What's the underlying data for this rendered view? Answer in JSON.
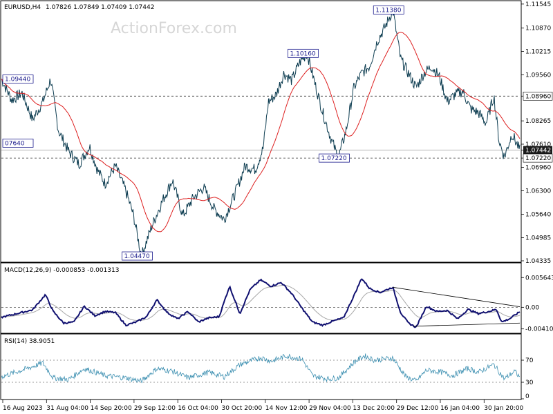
{
  "watermark": "ActionForex.com",
  "header": {
    "symbol": "EURUSD,H4",
    "ohlc": "1.07826 1.07849 1.07409 1.07442"
  },
  "colors": {
    "price": "#0c3c50",
    "ma": "#dd2020",
    "macd": "#101070",
    "signal": "#a8a8a8",
    "rsi": "#3a8eb0",
    "grid": "#606060",
    "current_tag_bg": "#1c1c1c"
  },
  "chart_data": [
    {
      "type": "line",
      "panel": "price",
      "title": "",
      "ylim": [
        1.04335,
        1.1162
      ],
      "y_ticks": [
        "1.11545",
        "1.10870",
        "1.10215",
        "1.09560",
        "1.08960",
        "1.08265",
        "1.07610",
        "1.07442",
        "1.07220",
        "1.06960",
        "1.06300",
        "1.05640",
        "1.04985",
        "1.04335"
      ],
      "x_ticks": [
        "16 Aug 2023",
        "31 Aug 04:00",
        "14 Sep 20:00",
        "29 Sep 12:00",
        "16 Oct 04:00",
        "30 Oct 20:00",
        "14 Nov 12:00",
        "29 Nov 04:00",
        "13 Dec 20:00",
        "29 Dec 12:00",
        "16 Jan 04:00",
        "30 Jan 20:00"
      ],
      "series_keypoints": [
        [
          0,
          1.0944
        ],
        [
          0.02,
          1.0885
        ],
        [
          0.04,
          1.0905
        ],
        [
          0.06,
          1.083
        ],
        [
          0.08,
          1.088
        ],
        [
          0.095,
          1.0944
        ],
        [
          0.11,
          1.08
        ],
        [
          0.13,
          1.074
        ],
        [
          0.15,
          1.0705
        ],
        [
          0.17,
          1.0755
        ],
        [
          0.185,
          1.069
        ],
        [
          0.2,
          1.065
        ],
        [
          0.22,
          1.07
        ],
        [
          0.24,
          1.063
        ],
        [
          0.255,
          1.056
        ],
        [
          0.27,
          1.0447
        ],
        [
          0.29,
          1.053
        ],
        [
          0.31,
          1.06
        ],
        [
          0.33,
          1.066
        ],
        [
          0.35,
          1.056
        ],
        [
          0.37,
          1.061
        ],
        [
          0.39,
          1.064
        ],
        [
          0.41,
          1.058
        ],
        [
          0.43,
          1.055
        ],
        [
          0.45,
          1.062
        ],
        [
          0.47,
          1.07
        ],
        [
          0.49,
          1.069
        ],
        [
          0.505,
          1.075
        ],
        [
          0.515,
          1.088
        ],
        [
          0.53,
          1.09
        ],
        [
          0.545,
          1.096
        ],
        [
          0.56,
          1.094
        ],
        [
          0.575,
          1.099
        ],
        [
          0.59,
          1.1016
        ],
        [
          0.605,
          1.093
        ],
        [
          0.62,
          1.085
        ],
        [
          0.635,
          1.078
        ],
        [
          0.65,
          1.0722
        ],
        [
          0.665,
          1.08
        ],
        [
          0.68,
          1.092
        ],
        [
          0.695,
          1.096
        ],
        [
          0.71,
          1.098
        ],
        [
          0.725,
          1.105
        ],
        [
          0.74,
          1.109
        ],
        [
          0.755,
          1.1138
        ],
        [
          0.77,
          1.1
        ],
        [
          0.785,
          1.096
        ],
        [
          0.8,
          1.092
        ],
        [
          0.815,
          1.096
        ],
        [
          0.83,
          1.098
        ],
        [
          0.845,
          1.095
        ],
        [
          0.86,
          1.088
        ],
        [
          0.875,
          1.09
        ],
        [
          0.89,
          1.091
        ],
        [
          0.905,
          1.086
        ],
        [
          0.92,
          1.085
        ],
        [
          0.935,
          1.082
        ],
        [
          0.95,
          1.0896
        ],
        [
          0.96,
          1.077
        ],
        [
          0.97,
          1.0725
        ],
        [
          0.985,
          1.079
        ],
        [
          1.0,
          1.07442
        ]
      ],
      "horizontal_lines": [
        1.0896,
        1.0722
      ],
      "labels": [
        {
          "text": "1.09440",
          "x": 0.0,
          "y": 1.0944
        },
        {
          "text": "07640",
          "x": 0.0,
          "y": 1.0764
        },
        {
          "text": "1.04470",
          "x": 0.27,
          "y": 1.0447
        },
        {
          "text": "1.10160",
          "x": 0.59,
          "y": 1.1016
        },
        {
          "text": "1.07220",
          "x": 0.65,
          "y": 1.0722
        },
        {
          "text": "1.11380",
          "x": 0.755,
          "y": 1.1138
        }
      ],
      "current_value": "1.07442",
      "grid": false
    },
    {
      "type": "line",
      "panel": "macd",
      "title": "MACD(12,26,9) -0.000853 -0.001313",
      "ylim": [
        -0.0048,
        0.0062
      ],
      "y_ticks": [
        "0.005643",
        "0.00",
        "-0.004104"
      ],
      "zero_line": true,
      "trendlines": [
        {
          "from": [
            0.755,
            0.0038
          ],
          "to": [
            1.0,
            0.0001
          ]
        },
        {
          "from": [
            0.795,
            -0.0036
          ],
          "to": [
            1.0,
            -0.003
          ]
        }
      ],
      "macd_keypoints": [
        [
          0,
          -0.0019
        ],
        [
          0.03,
          -0.0012
        ],
        [
          0.06,
          -0.0005
        ],
        [
          0.085,
          0.0024
        ],
        [
          0.1,
          -0.0008
        ],
        [
          0.12,
          -0.003
        ],
        [
          0.14,
          -0.0028
        ],
        [
          0.16,
          0.0002
        ],
        [
          0.18,
          -0.0016
        ],
        [
          0.2,
          -0.0008
        ],
        [
          0.22,
          -0.001
        ],
        [
          0.24,
          -0.0034
        ],
        [
          0.26,
          -0.0028
        ],
        [
          0.28,
          -0.0018
        ],
        [
          0.3,
          0.0014
        ],
        [
          0.32,
          -0.001
        ],
        [
          0.34,
          -0.0022
        ],
        [
          0.36,
          -0.0008
        ],
        [
          0.38,
          -0.0028
        ],
        [
          0.4,
          -0.002
        ],
        [
          0.42,
          -0.0018
        ],
        [
          0.44,
          0.004
        ],
        [
          0.46,
          -0.0012
        ],
        [
          0.48,
          0.0034
        ],
        [
          0.5,
          0.0052
        ],
        [
          0.52,
          0.004
        ],
        [
          0.54,
          0.0047
        ],
        [
          0.56,
          0.0026
        ],
        [
          0.58,
          -0.0002
        ],
        [
          0.6,
          -0.0028
        ],
        [
          0.62,
          -0.0034
        ],
        [
          0.64,
          -0.0026
        ],
        [
          0.66,
          -0.002
        ],
        [
          0.68,
          0.0022
        ],
        [
          0.695,
          0.0055
        ],
        [
          0.71,
          0.0036
        ],
        [
          0.73,
          0.0028
        ],
        [
          0.755,
          0.0038
        ],
        [
          0.77,
          -0.001
        ],
        [
          0.785,
          -0.003
        ],
        [
          0.8,
          -0.0038
        ],
        [
          0.82,
          0.0002
        ],
        [
          0.84,
          -0.0008
        ],
        [
          0.86,
          -0.0006
        ],
        [
          0.88,
          -0.0022
        ],
        [
          0.9,
          -0.0004
        ],
        [
          0.92,
          -0.0012
        ],
        [
          0.94,
          -0.0008
        ],
        [
          0.955,
          -0.0004
        ],
        [
          0.965,
          -0.0028
        ],
        [
          0.98,
          -0.0022
        ],
        [
          1.0,
          -0.000853
        ]
      ]
    },
    {
      "type": "line",
      "panel": "rsi",
      "title": "RSI(14) 38.9051",
      "ylim": [
        0,
        100
      ],
      "y_ticks": [
        "70",
        "30",
        "0"
      ],
      "levels": [
        70,
        30
      ],
      "rsi_keypoints": [
        [
          0,
          40
        ],
        [
          0.05,
          55
        ],
        [
          0.08,
          65
        ],
        [
          0.1,
          38
        ],
        [
          0.13,
          35
        ],
        [
          0.16,
          55
        ],
        [
          0.2,
          42
        ],
        [
          0.24,
          38
        ],
        [
          0.27,
          32
        ],
        [
          0.3,
          55
        ],
        [
          0.33,
          50
        ],
        [
          0.36,
          38
        ],
        [
          0.4,
          48
        ],
        [
          0.43,
          40
        ],
        [
          0.46,
          62
        ],
        [
          0.5,
          75
        ],
        [
          0.52,
          68
        ],
        [
          0.55,
          78
        ],
        [
          0.58,
          72
        ],
        [
          0.6,
          42
        ],
        [
          0.63,
          36
        ],
        [
          0.65,
          38
        ],
        [
          0.68,
          66
        ],
        [
          0.7,
          78
        ],
        [
          0.72,
          70
        ],
        [
          0.755,
          74
        ],
        [
          0.78,
          40
        ],
        [
          0.8,
          32
        ],
        [
          0.82,
          52
        ],
        [
          0.85,
          48
        ],
        [
          0.87,
          42
        ],
        [
          0.9,
          55
        ],
        [
          0.92,
          48
        ],
        [
          0.95,
          62
        ],
        [
          0.97,
          36
        ],
        [
          0.99,
          50
        ],
        [
          1.0,
          38.9
        ]
      ]
    }
  ]
}
